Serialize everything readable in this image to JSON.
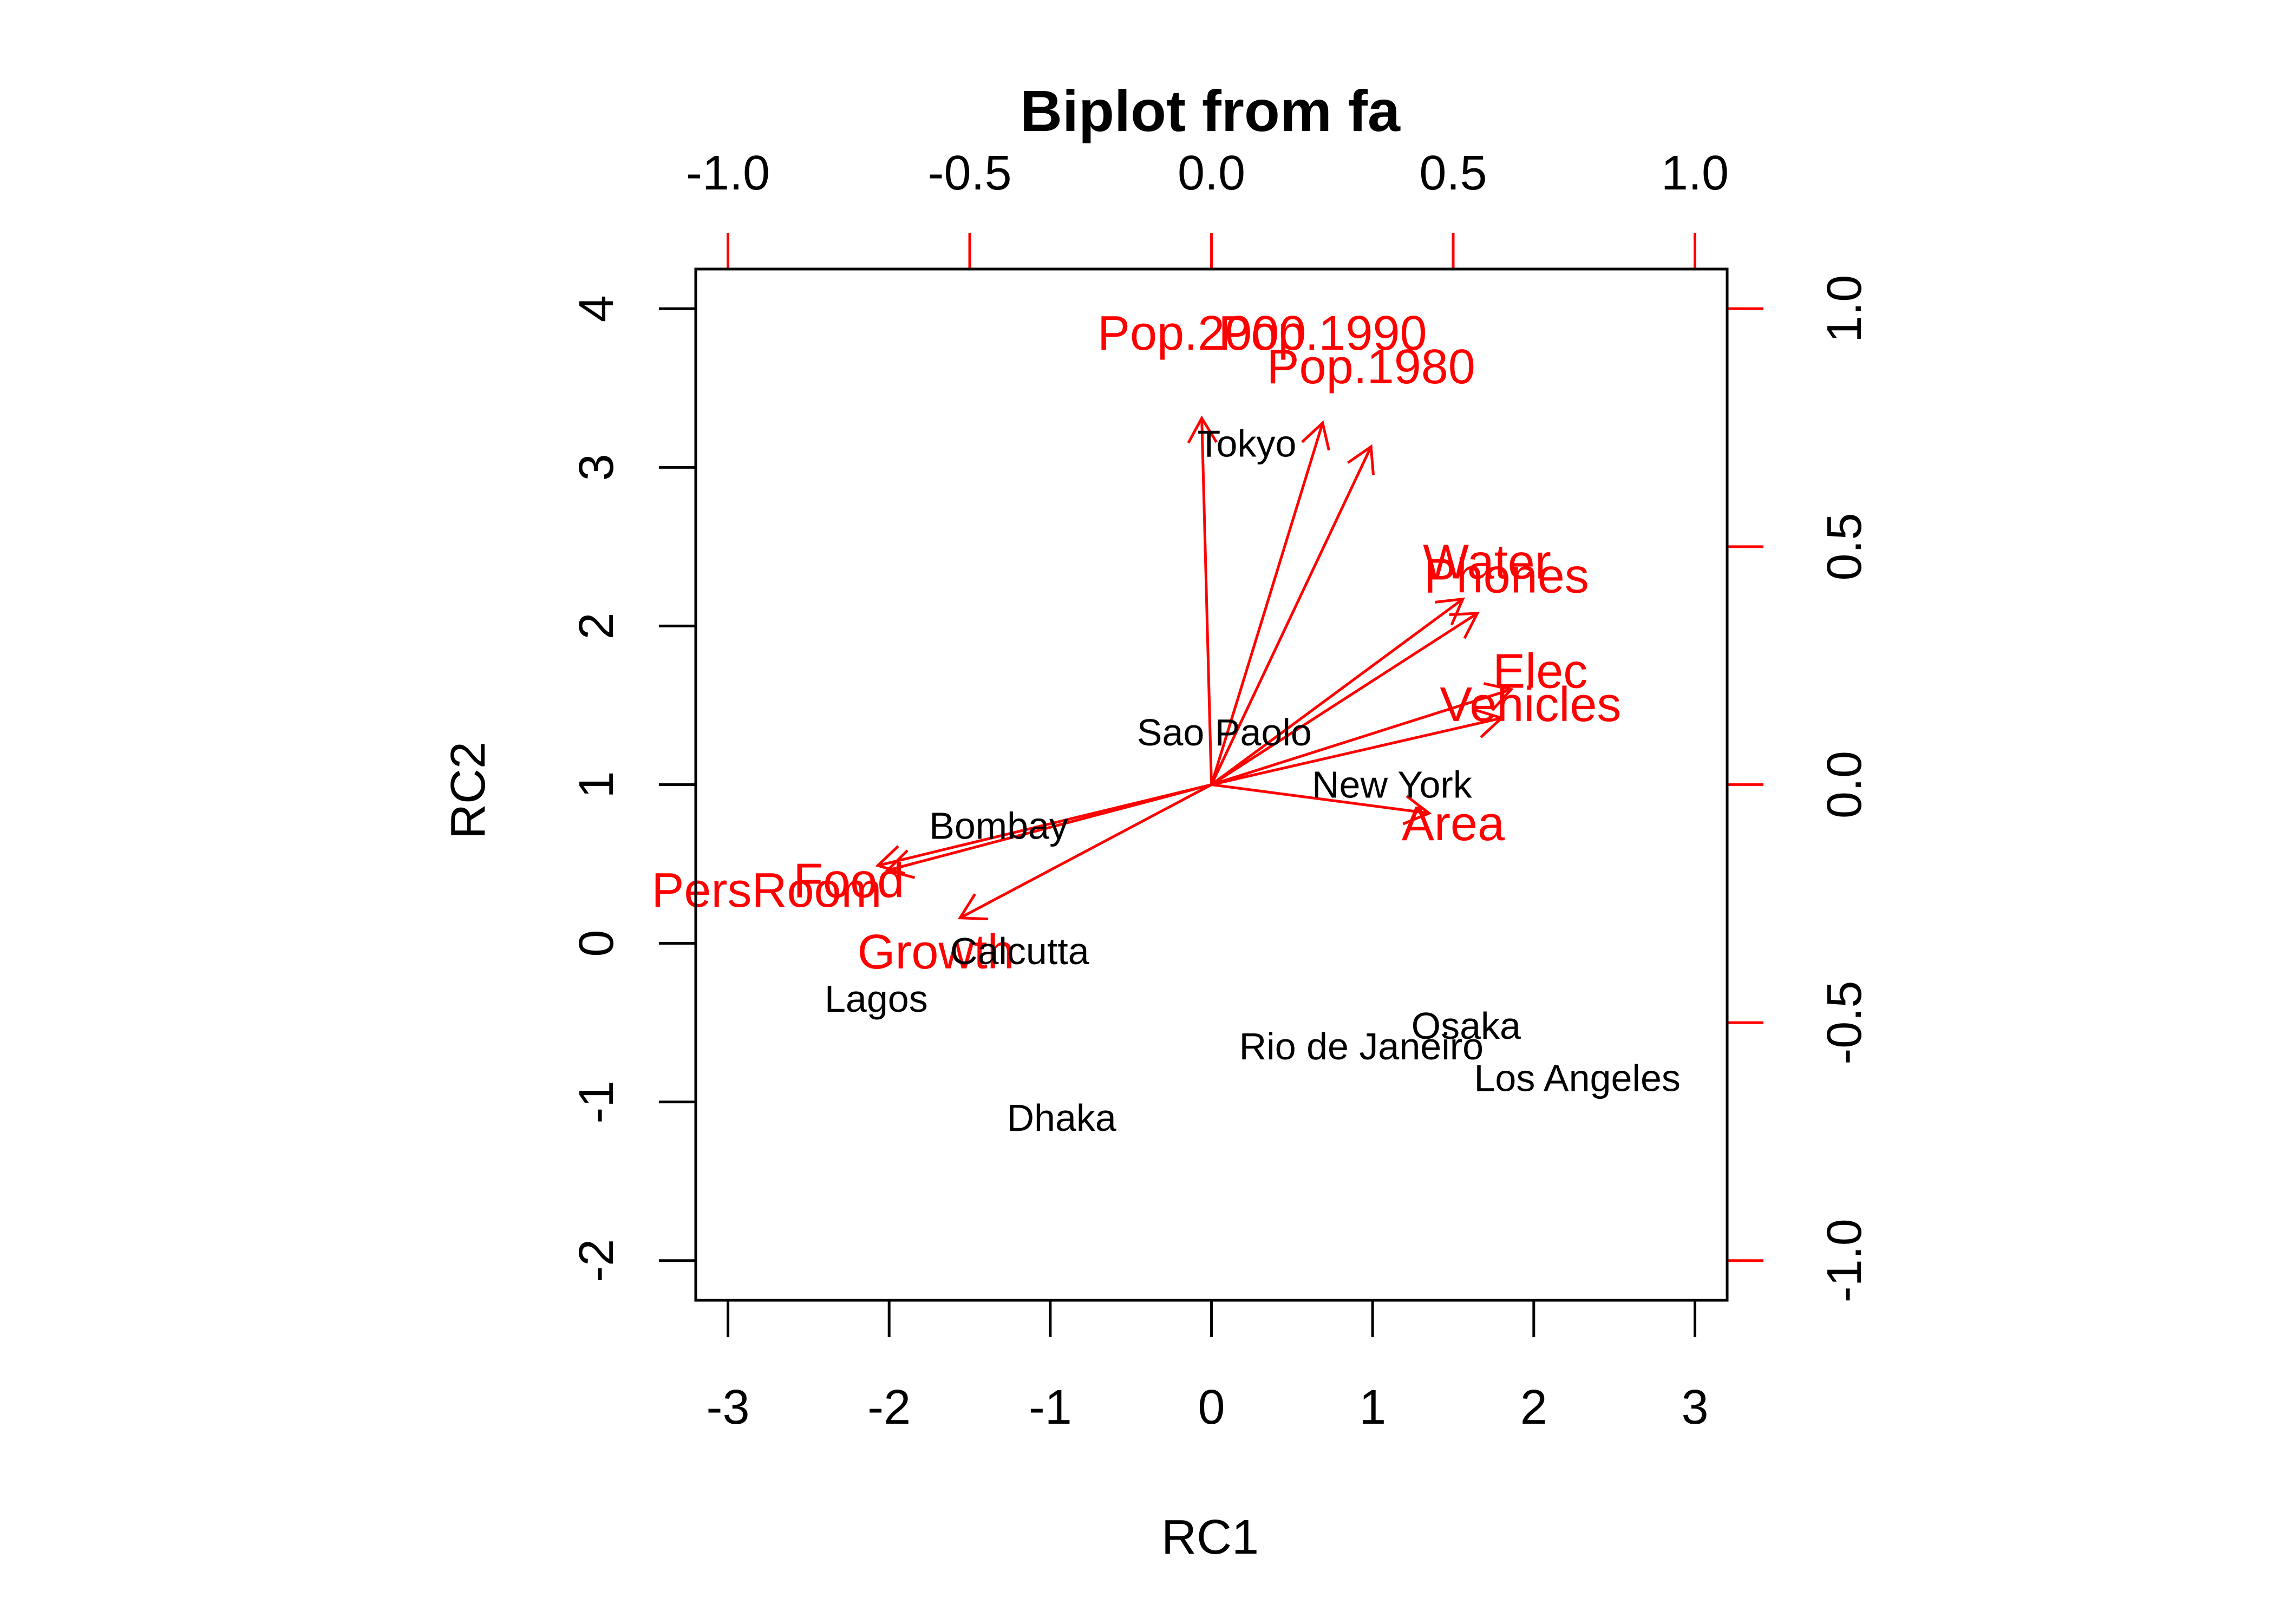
{
  "chart_data": {
    "type": "scatter",
    "subtype": "biplot",
    "title": "Biplot from fa",
    "xlabel": "RC1",
    "ylabel": "RC2",
    "xlim": [
      -3.2,
      3.2
    ],
    "ylim": [
      -2.25,
      4.25
    ],
    "xticks": [
      -3,
      -2,
      -1,
      0,
      1,
      2,
      3
    ],
    "xtick_labels": [
      "-3",
      "-2",
      "-1",
      "0",
      "1",
      "2",
      "3"
    ],
    "yticks": [
      -2,
      -1,
      0,
      1,
      2,
      3,
      4
    ],
    "ytick_labels": [
      "-2",
      "-1",
      "0",
      "1",
      "2",
      "3",
      "4"
    ],
    "top_ticks": [
      -1.0,
      -0.5,
      0.0,
      0.5,
      1.0
    ],
    "top_tick_labels": [
      "-1.0",
      "-0.5",
      "0.0",
      "0.5",
      "1.0"
    ],
    "right_ticks": [
      -1.0,
      -0.5,
      0.0,
      0.5,
      1.0
    ],
    "right_tick_labels": [
      "-1.0",
      "-0.5",
      "0.0",
      "0.5",
      "1.0"
    ],
    "colors": {
      "scores": "#000000",
      "loadings": "#ff0000",
      "axes": "#000000"
    },
    "scores": [
      {
        "label": "Tokyo",
        "x": 0.22,
        "y": 3.15
      },
      {
        "label": "Sao Paolo",
        "x": 0.08,
        "y": 1.33
      },
      {
        "label": "New York",
        "x": 1.12,
        "y": 1.0
      },
      {
        "label": "Bombay",
        "x": -1.32,
        "y": 0.74
      },
      {
        "label": "Calcutta",
        "x": -1.19,
        "y": -0.05
      },
      {
        "label": "Lagos",
        "x": -2.08,
        "y": -0.35
      },
      {
        "label": "Osaka",
        "x": 1.58,
        "y": -0.52
      },
      {
        "label": "Rio de Janeiro",
        "x": 0.93,
        "y": -0.65
      },
      {
        "label": "Los Angeles",
        "x": 2.27,
        "y": -0.85
      },
      {
        "label": "Dhaka",
        "x": -0.93,
        "y": -1.1
      }
    ],
    "loadings": [
      {
        "label": "Pop.2000",
        "x": -0.02,
        "y": 0.77,
        "label_x": -0.02,
        "label_y": 0.95
      },
      {
        "label": "Pop.1990",
        "x": 0.23,
        "y": 0.76,
        "label_x": 0.23,
        "label_y": 0.95
      },
      {
        "label": "Pop.1980",
        "x": 0.33,
        "y": 0.71,
        "label_x": 0.33,
        "label_y": 0.88
      },
      {
        "label": "Water",
        "x": 0.52,
        "y": 0.39,
        "label_x": 0.57,
        "label_y": 0.47
      },
      {
        "label": "Phones",
        "x": 0.55,
        "y": 0.36,
        "label_x": 0.61,
        "label_y": 0.44
      },
      {
        "label": "Elec",
        "x": 0.62,
        "y": 0.2,
        "label_x": 0.68,
        "label_y": 0.24
      },
      {
        "label": "Vehicles",
        "x": 0.6,
        "y": 0.14,
        "label_x": 0.66,
        "label_y": 0.17
      },
      {
        "label": "Area",
        "x": 0.45,
        "y": -0.06,
        "label_x": 0.5,
        "label_y": -0.08
      },
      {
        "label": "Food",
        "x": -0.69,
        "y": -0.17,
        "label_x": -0.75,
        "label_y": -0.2
      },
      {
        "label": "PersRoom",
        "x": -0.67,
        "y": -0.18,
        "label_x": -0.92,
        "label_y": -0.22
      },
      {
        "label": "Growth",
        "x": -0.52,
        "y": -0.28,
        "label_x": -0.57,
        "label_y": -0.35
      }
    ]
  }
}
